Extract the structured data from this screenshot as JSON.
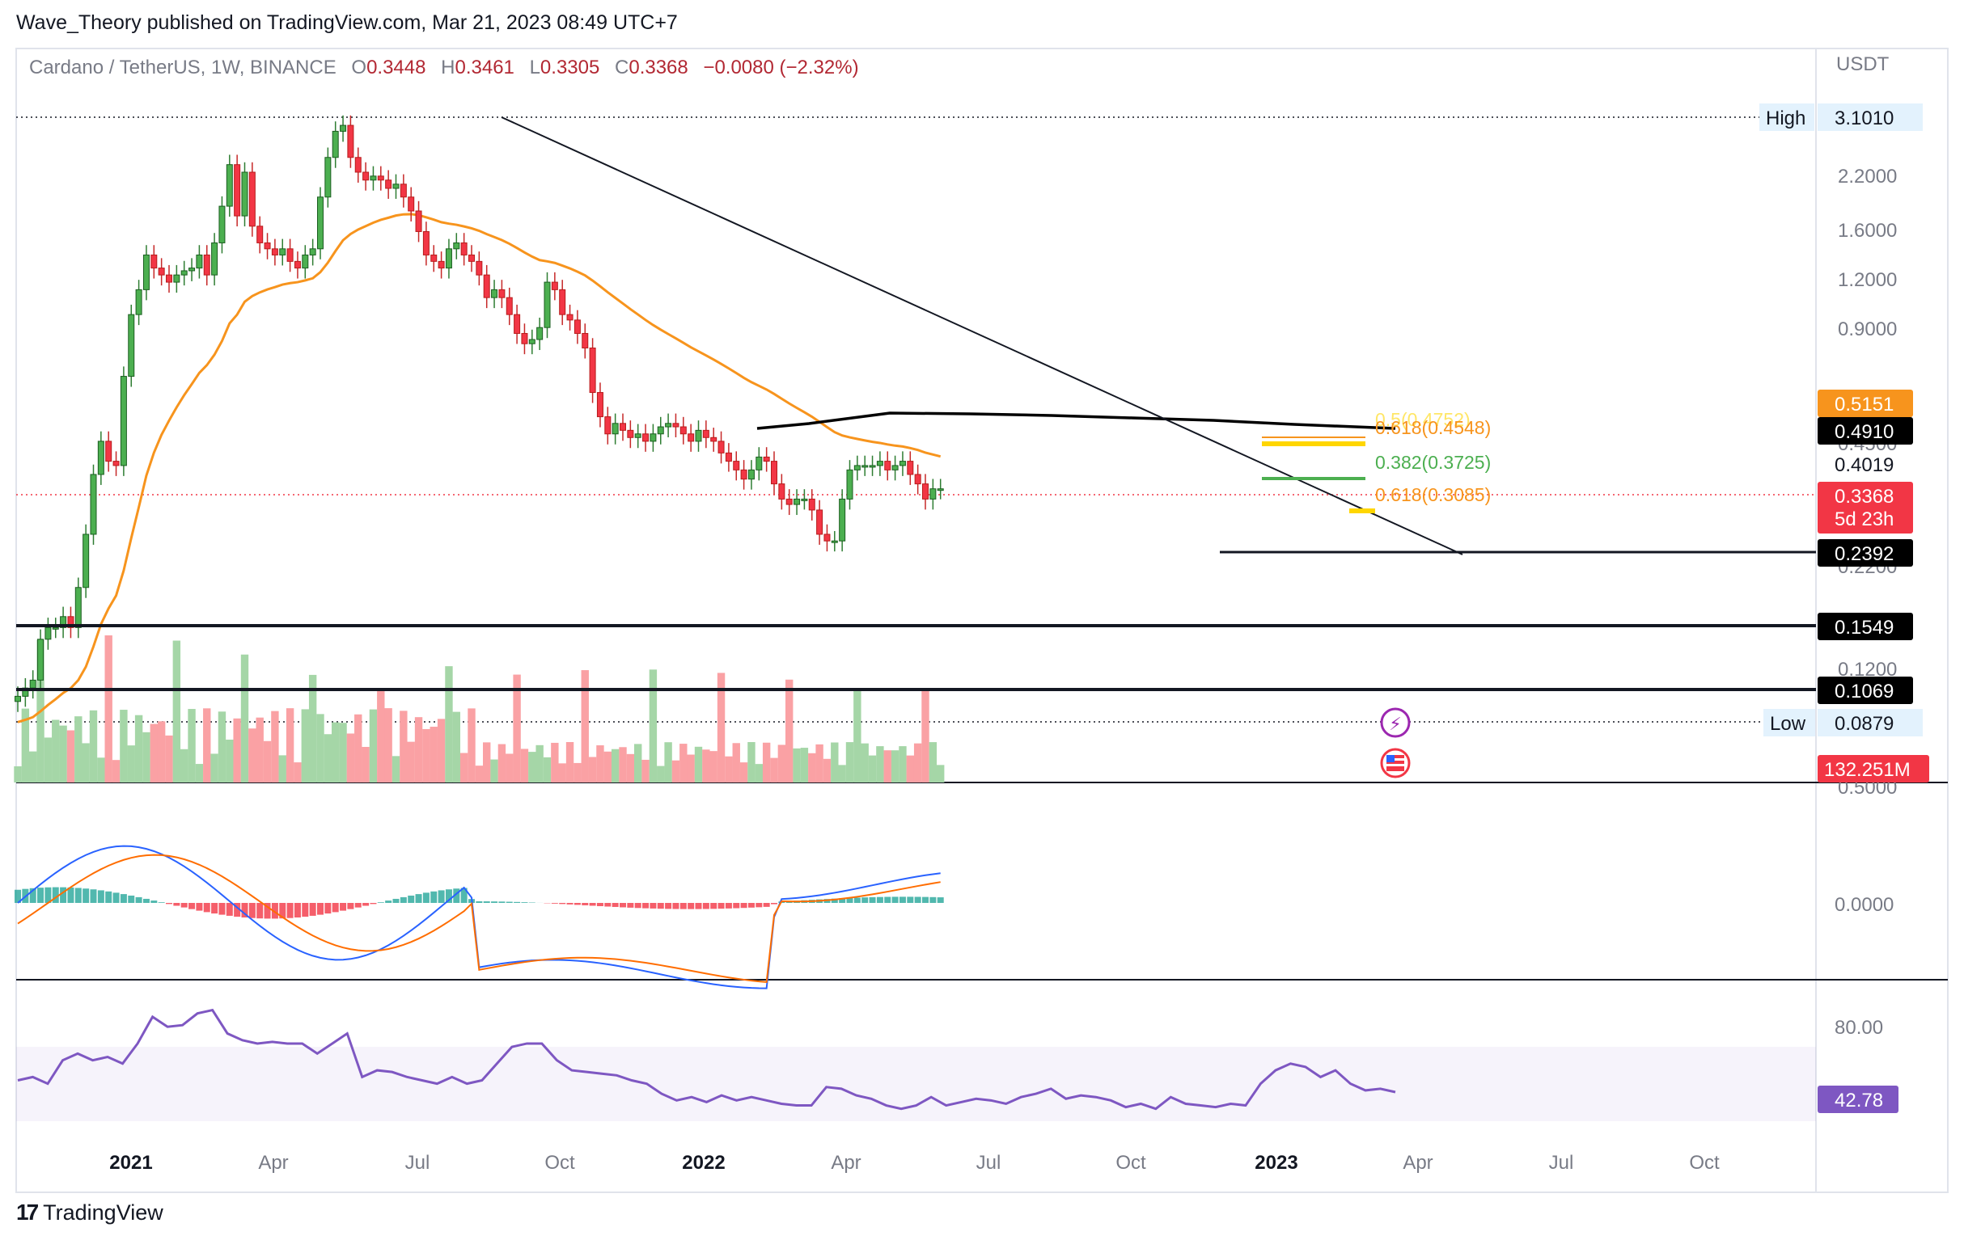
{
  "header": {
    "publisher_text": "Wave_Theory published on TradingView.com, Mar 21, 2023 08:49 UTC+7",
    "symbol_line": "Cardano / TetherUS, 1W, BINANCE",
    "ohlc": {
      "o_key": "O",
      "o": "0.3448",
      "h_key": "H",
      "h": "0.3461",
      "l_key": "L",
      "l": "0.3305",
      "c_key": "C",
      "c": "0.3368",
      "change": "−0.0080 (−2.32%)"
    },
    "currency": "USDT"
  },
  "footer": {
    "logo_glyph": "17",
    "brand": "TradingView"
  },
  "colors": {
    "up": "#22ab94",
    "down": "#f23645",
    "up_body": "#4caf50",
    "ema": "#f7941d",
    "ma200": "#000000",
    "trend": "#000000",
    "macd": "#2962ff",
    "signal": "#ff6d00",
    "rsi": "#7e57c2",
    "fib_yellow": "#ffd600",
    "fib_green": "#4caf50",
    "vol_up": "#a5d6a7",
    "vol_down": "#faa1a4"
  },
  "chart_data": {
    "type": "candlestick",
    "interval": "1W",
    "price_axis_scale": "log",
    "x_axis_labels": [
      "2021",
      "Apr",
      "Jul",
      "Oct",
      "2022",
      "Apr",
      "Jul",
      "Oct",
      "2023",
      "Apr",
      "Jul",
      "Oct"
    ],
    "x_axis_bold": [
      "2021",
      "2022",
      "2023"
    ],
    "price_ticks": [
      "2.2000",
      "1.6000",
      "1.2000",
      "0.9000",
      "0.4500",
      "0.2200",
      "0.1200",
      "0.5000"
    ],
    "macd_ticks": [
      "0.0000"
    ],
    "rsi_ticks": [
      "80.00"
    ],
    "high_label": "High",
    "high_value": "3.1010",
    "low_label": "Low",
    "low_value": "0.0879",
    "price_labels": [
      {
        "value": "0.5151",
        "style": "ema"
      },
      {
        "value": "0.4910",
        "style": "black"
      },
      {
        "value": "0.4019",
        "style": "plain"
      },
      {
        "value": "0.3368",
        "style": "last"
      },
      {
        "value": "5d 23h",
        "style": "countdown"
      },
      {
        "value": "0.2392",
        "style": "black"
      },
      {
        "value": "0.1549",
        "style": "black"
      },
      {
        "value": "0.1069",
        "style": "black"
      },
      {
        "value": "132.251M",
        "style": "volume"
      }
    ],
    "horizontal_levels": [
      0.1549,
      0.1069
    ],
    "support_segment": 0.2392,
    "fib_labels": [
      {
        "text": "0.618(0.4548)",
        "color": "yellow"
      },
      {
        "text": "0.382(0.3725)",
        "color": "green"
      },
      {
        "text": "0.618(0.3085)",
        "color": "yellow"
      }
    ],
    "rsi_last": "42.78",
    "rsi_series": [
      50,
      52,
      48,
      62,
      66,
      62,
      64,
      60,
      72,
      88,
      82,
      83,
      90,
      92,
      78,
      74,
      72,
      73,
      72,
      72,
      66,
      72,
      78,
      52,
      56,
      55,
      52,
      50,
      48,
      52,
      48,
      50,
      60,
      70,
      72,
      72,
      62,
      56,
      55,
      54,
      53,
      50,
      48,
      42,
      38,
      40,
      37,
      41,
      38,
      40,
      38,
      36,
      35,
      35,
      46,
      45,
      41,
      39,
      35,
      33,
      35,
      40,
      35,
      37,
      39,
      38,
      36,
      40,
      42,
      45,
      39,
      41,
      40,
      38,
      34,
      36,
      33,
      40,
      36,
      35,
      34,
      36,
      35,
      48,
      56,
      60,
      58,
      52,
      56,
      48,
      44,
      45,
      43
    ]
  }
}
